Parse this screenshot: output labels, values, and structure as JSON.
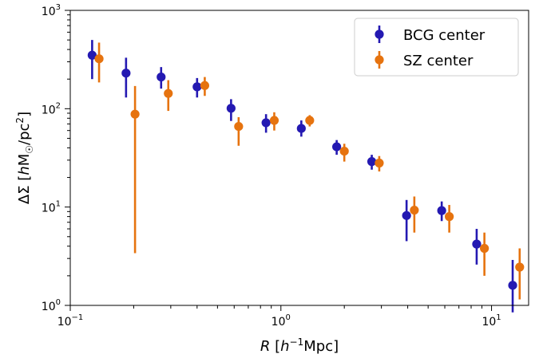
{
  "chart_data": {
    "type": "scatter",
    "x_scale": "log",
    "y_scale": "log",
    "xlim": [
      0.1,
      15
    ],
    "ylim": [
      1,
      1000
    ],
    "xlabel": "R [h^-1 Mpc]",
    "ylabel": "ΔΣ [h M_☉/pc^2]",
    "x_ticks": [
      {
        "value": 0.1,
        "base": "10",
        "exp": "−1"
      },
      {
        "value": 1,
        "base": "10",
        "exp": "0"
      },
      {
        "value": 10,
        "base": "10",
        "exp": "1"
      }
    ],
    "y_ticks": [
      {
        "value": 1,
        "base": "10",
        "exp": "0"
      },
      {
        "value": 10,
        "base": "10",
        "exp": "1"
      },
      {
        "value": 100,
        "base": "10",
        "exp": "2"
      },
      {
        "value": 1000,
        "base": "10",
        "exp": "3"
      }
    ],
    "legend_position": "top-right",
    "grid": false,
    "series": [
      {
        "name": "BCG center",
        "color": "#2419B2",
        "x": [
          0.127,
          0.184,
          0.27,
          0.4,
          0.58,
          0.85,
          1.25,
          1.84,
          2.7,
          3.95,
          5.8,
          8.5,
          12.6
        ],
        "y": [
          350,
          230,
          210,
          167,
          101,
          72,
          63,
          41,
          29,
          8.2,
          9.2,
          4.2,
          1.6
        ],
        "y_err_low": [
          200,
          130,
          160,
          130,
          75,
          57,
          52,
          34,
          24,
          4.5,
          7.2,
          2.6,
          0.85
        ],
        "y_err_high": [
          500,
          330,
          265,
          205,
          125,
          88,
          76,
          48,
          34,
          11.8,
          11.4,
          6.0,
          2.9
        ]
      },
      {
        "name": "SZ center",
        "color": "#E6730F",
        "x": [
          0.137,
          0.203,
          0.292,
          0.435,
          0.63,
          0.93,
          1.37,
          2.0,
          2.93,
          4.3,
          6.3,
          9.25,
          13.6
        ],
        "y": [
          322,
          88,
          143,
          172,
          66,
          76,
          76,
          37,
          28,
          9.3,
          8.0,
          3.8,
          2.45
        ],
        "y_err_low": [
          185,
          3.4,
          95,
          135,
          42,
          60,
          66,
          29,
          23,
          5.5,
          5.5,
          2.0,
          1.15
        ],
        "y_err_high": [
          470,
          170,
          195,
          210,
          82,
          92,
          86,
          44,
          33,
          12.8,
          10.5,
          5.5,
          3.8
        ]
      }
    ]
  }
}
